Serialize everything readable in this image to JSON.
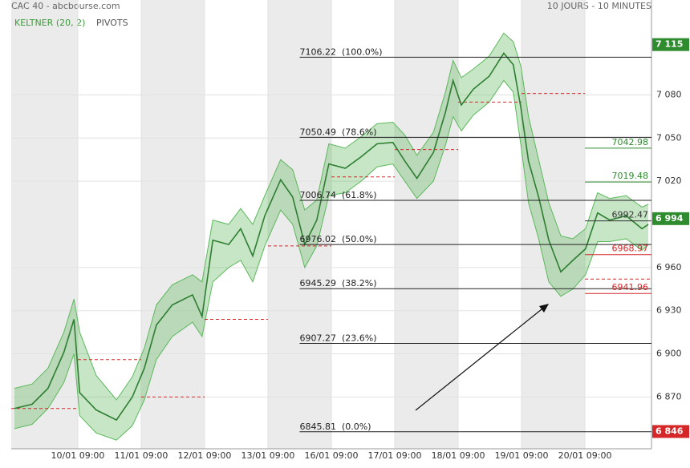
{
  "chart_data": {
    "type": "line",
    "title": "CAC 40 - abcbourse.com",
    "subtitle": "10 JOURS - 10 MINUTES",
    "indicators": [
      "KELTNER (20, 2)",
      "PIVOTS"
    ],
    "xlim": [
      -1.05,
      9.05
    ],
    "xticks": [
      {
        "value": 0,
        "label": "10/01 09:00"
      },
      {
        "value": 1,
        "label": "11/01 09:00"
      },
      {
        "value": 2,
        "label": "12/01 09:00"
      },
      {
        "value": 3,
        "label": "13/01 09:00"
      },
      {
        "value": 4,
        "label": "16/01 09:00"
      },
      {
        "value": 5,
        "label": "17/01 09:00"
      },
      {
        "value": 6,
        "label": "18/01 09:00"
      },
      {
        "value": 7,
        "label": "19/01 09:00"
      },
      {
        "value": 8,
        "label": "20/01 09:00"
      }
    ],
    "ylim": [
      6834,
      7146
    ],
    "yticks": [
      {
        "value": 6870,
        "label": "6 870"
      },
      {
        "value": 6900,
        "label": "6 900"
      },
      {
        "value": 6930,
        "label": "6 930"
      },
      {
        "value": 6960,
        "label": "6 960"
      },
      {
        "value": 7020,
        "label": "7 020"
      },
      {
        "value": 7050,
        "label": "7 050"
      },
      {
        "value": 7080,
        "label": "7 080"
      }
    ],
    "grid": true,
    "x": [
      -1.0,
      -0.72,
      -0.47,
      -0.22,
      -0.06,
      0.03,
      0.29,
      0.61,
      0.86,
      1.05,
      1.24,
      1.49,
      1.81,
      1.96,
      2.13,
      2.38,
      2.57,
      2.76,
      2.95,
      3.2,
      3.39,
      3.58,
      3.77,
      3.96,
      4.22,
      4.47,
      4.72,
      4.97,
      5.16,
      5.35,
      5.61,
      5.8,
      5.92,
      6.05,
      6.24,
      6.49,
      6.72,
      6.87,
      6.99,
      7.11,
      7.27,
      7.43,
      7.62,
      7.81,
      8.01,
      8.2,
      8.39,
      8.65,
      8.9,
      9.0
    ],
    "series": [
      {
        "name": "CAC 40",
        "color": "#2e7d32",
        "values": [
          6862,
          6865,
          6876,
          6901,
          6924,
          6873,
          6861,
          6854,
          6870,
          6890,
          6920,
          6934,
          6941,
          6926,
          6979,
          6976,
          6987,
          6968,
          6996,
          7021,
          7009,
          6976,
          6993,
          7032,
          7029,
          7037,
          7046,
          7047,
          7034,
          7022,
          7040,
          7068,
          7090,
          7073,
          7084,
          7093,
          7109,
          7101,
          7071,
          7034,
          7009,
          6979,
          6957,
          6965,
          6973,
          6998,
          6993,
          6996,
          6987,
          6990
        ]
      },
      {
        "name": "KELTNER (20, 2)",
        "color": "#5cb85c",
        "upper": [
          6876,
          6879,
          6890,
          6915,
          6938,
          6915,
          6885,
          6868,
          6884,
          6904,
          6934,
          6948,
          6955,
          6950,
          6993,
          6990,
          7001,
          6990,
          7010,
          7035,
          7028,
          7000,
          7007,
          7046,
          7043,
          7051,
          7060,
          7061,
          7052,
          7038,
          7054,
          7082,
          7104,
          7092,
          7098,
          7107,
          7123,
          7117,
          7100,
          7065,
          7035,
          7005,
          6982,
          6980,
          6987,
          7012,
          7008,
          7010,
          7002,
          7004
        ],
        "lower": [
          6848,
          6851,
          6862,
          6880,
          6900,
          6857,
          6845,
          6840,
          6850,
          6868,
          6896,
          6912,
          6922,
          6912,
          6950,
          6960,
          6965,
          6950,
          6975,
          7000,
          6990,
          6960,
          6975,
          7010,
          7012,
          7020,
          7030,
          7032,
          7020,
          7008,
          7020,
          7045,
          7065,
          7055,
          7066,
          7075,
          7090,
          7082,
          7045,
          7005,
          6980,
          6950,
          6940,
          6945,
          6955,
          6978,
          6978,
          6980,
          6972,
          6976
        ]
      }
    ],
    "pivots": [
      {
        "x": [
          -1.05,
          0
        ],
        "value": 6862
      },
      {
        "x": [
          0,
          1
        ],
        "value": 6896
      },
      {
        "x": [
          1,
          2
        ],
        "value": 6870
      },
      {
        "x": [
          2,
          3
        ],
        "value": 6924
      },
      {
        "x": [
          3,
          4
        ],
        "value": 6975
      },
      {
        "x": [
          4,
          5
        ],
        "value": 7023
      },
      {
        "x": [
          5,
          6
        ],
        "value": 7042
      },
      {
        "x": [
          6,
          7
        ],
        "value": 7075
      },
      {
        "x": [
          7,
          8
        ],
        "value": 7081
      },
      {
        "x": [
          8,
          9.05
        ],
        "value": 6952
      }
    ],
    "fibonacci": [
      {
        "value": 7106.22,
        "label": "7106.22  (100.0%)"
      },
      {
        "value": 7050.49,
        "label": "7050.49  (78.6%)"
      },
      {
        "value": 7006.74,
        "label": "7006.74  (61.8%)"
      },
      {
        "value": 6976.02,
        "label": "6976.02  (50.0%)"
      },
      {
        "value": 6945.29,
        "label": "6945.29  (38.2%)"
      },
      {
        "value": 6907.27,
        "label": "6907.27  (23.6%)"
      },
      {
        "value": 6845.81,
        "label": "6845.81  (0.0%)"
      }
    ],
    "levels": [
      {
        "value": 7042.98,
        "color": "#2e8b2e"
      },
      {
        "value": 7019.48,
        "color": "#2e8b2e"
      },
      {
        "value": 6992.47,
        "color": "#333333"
      },
      {
        "value": 6968.97,
        "color": "#d62728"
      },
      {
        "value": 6941.96,
        "color": "#d62728"
      }
    ],
    "price_markers": [
      {
        "value": 7115,
        "label": "7 115",
        "color": "#2e8b2e"
      },
      {
        "value": 6994,
        "label": "6 994",
        "color": "#2e8b2e"
      },
      {
        "value": 6846,
        "label": "6 846",
        "color": "#d62728"
      }
    ]
  }
}
